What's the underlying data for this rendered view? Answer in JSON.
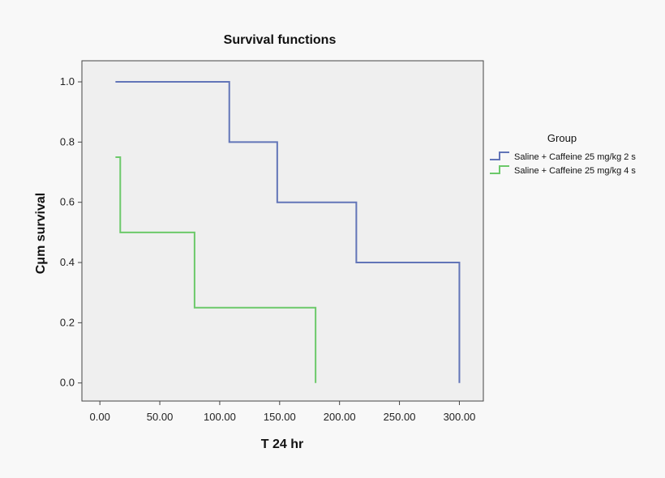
{
  "chart_data": {
    "type": "line",
    "title": "Survival functions",
    "xlabel": "T 24 hr",
    "ylabel": "Cμm survival",
    "xlim": [
      -15,
      320
    ],
    "ylim": [
      -0.06,
      1.07
    ],
    "x_ticks": [
      "0.00",
      "50.00",
      "100.00",
      "150.00",
      "200.00",
      "250.00",
      "300.00"
    ],
    "x_tick_values": [
      0,
      50,
      100,
      150,
      200,
      250,
      300
    ],
    "y_ticks": [
      "0.0",
      "0.2",
      "0.4",
      "0.6",
      "0.8",
      "1.0"
    ],
    "y_tick_values": [
      0,
      0.2,
      0.4,
      0.6,
      0.8,
      1.0
    ],
    "grid": false,
    "legend": {
      "title": "Group",
      "placement": "right"
    },
    "series": [
      {
        "name": "Saline + Caffeine 25 mg/kg 2 s",
        "color": "#6275b8",
        "step": "post",
        "x": [
          13,
          108,
          148,
          214,
          300,
          300
        ],
        "y": [
          1.0,
          0.8,
          0.6,
          0.4,
          0.4,
          0.0
        ]
      },
      {
        "name": "Saline + Caffeine 25 mg/kg 4 s",
        "color": "#6cc96a",
        "step": "post",
        "x": [
          13,
          17,
          79,
          180,
          180
        ],
        "y": [
          0.75,
          0.5,
          0.25,
          0.25,
          0.0
        ]
      }
    ]
  }
}
